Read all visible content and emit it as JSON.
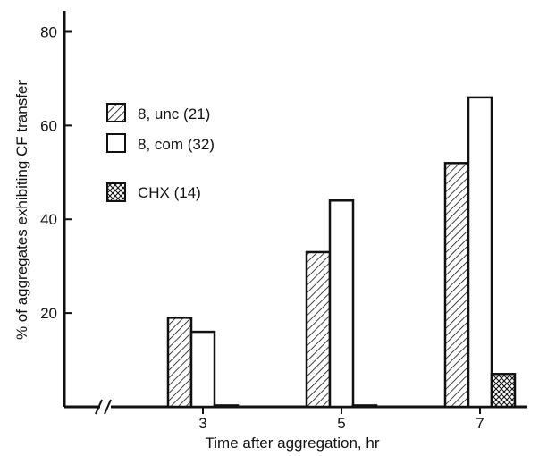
{
  "chart_data": {
    "type": "bar",
    "title": "",
    "xlabel": "Time after aggregation, hr",
    "ylabel": "% of aggregates exhibiting CF transfer",
    "categories": [
      "3",
      "5",
      "7"
    ],
    "ylim": [
      0,
      82
    ],
    "yticks": [
      "20",
      "40",
      "60",
      "80"
    ],
    "x_axis_break": true,
    "grid": false,
    "legend_position": "top-left",
    "series": [
      {
        "name": "8, unc (21)",
        "pattern": "diagonal-hatch",
        "values": [
          19,
          33,
          52
        ]
      },
      {
        "name": "8, com (32)",
        "pattern": "open",
        "values": [
          16,
          44,
          66
        ]
      },
      {
        "name": "CHX (14)",
        "pattern": "cross-hatch",
        "values": [
          0.3,
          0.3,
          7
        ]
      }
    ],
    "colors": {
      "ink": "#111111",
      "fill": "#ffffff"
    }
  }
}
